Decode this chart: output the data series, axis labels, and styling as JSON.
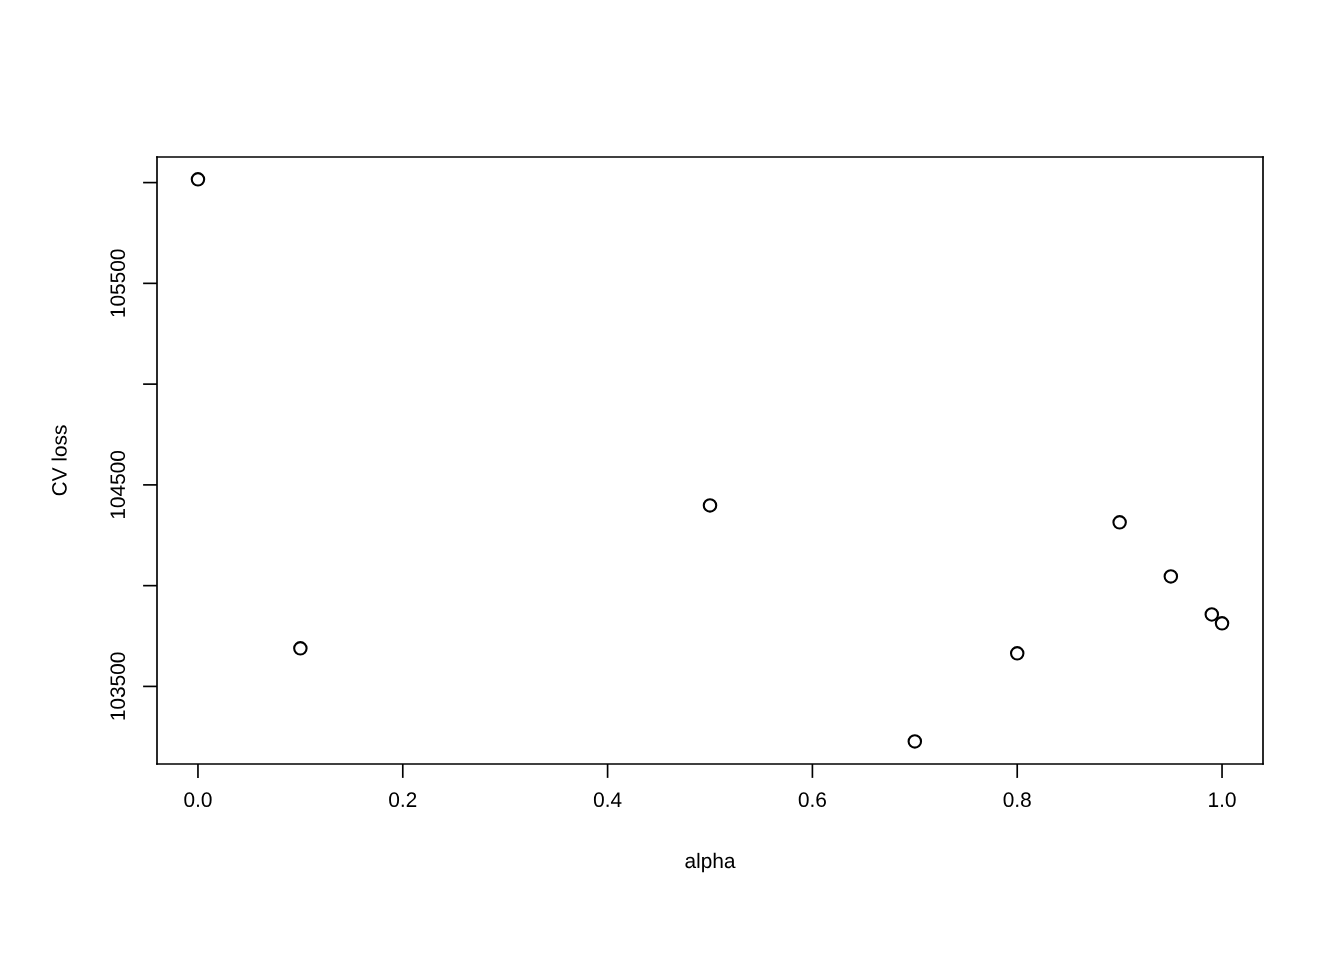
{
  "chart_data": {
    "type": "scatter",
    "xlabel": "alpha",
    "ylabel": "CV loss",
    "x": [
      0.0,
      0.1,
      0.5,
      0.7,
      0.8,
      0.9,
      0.95,
      0.99,
      1.0
    ],
    "series": [
      {
        "color": "#000000",
        "values": [
          106016,
          103689,
          104398,
          103227,
          103664,
          104314,
          104046,
          103857,
          103813
        ]
      }
    ],
    "marker": "circle",
    "xlim": [
      -0.04,
      1.04
    ],
    "xticks": [
      {
        "value": 0.0,
        "label": "0.0"
      },
      {
        "value": 0.2,
        "label": "0.2"
      },
      {
        "value": 0.4,
        "label": "0.4"
      },
      {
        "value": 0.6,
        "label": "0.6"
      },
      {
        "value": 0.8,
        "label": "0.8"
      },
      {
        "value": 1.0,
        "label": "1.0"
      }
    ],
    "ylim": [
      103115,
      106127
    ],
    "yticks": [
      103500,
      {
        "value": 104000,
        "label": null
      },
      104500,
      {
        "value": 105000,
        "label": null
      },
      105500,
      {
        "value": 106000,
        "label": null
      }
    ],
    "grid": false,
    "legend": false
  }
}
